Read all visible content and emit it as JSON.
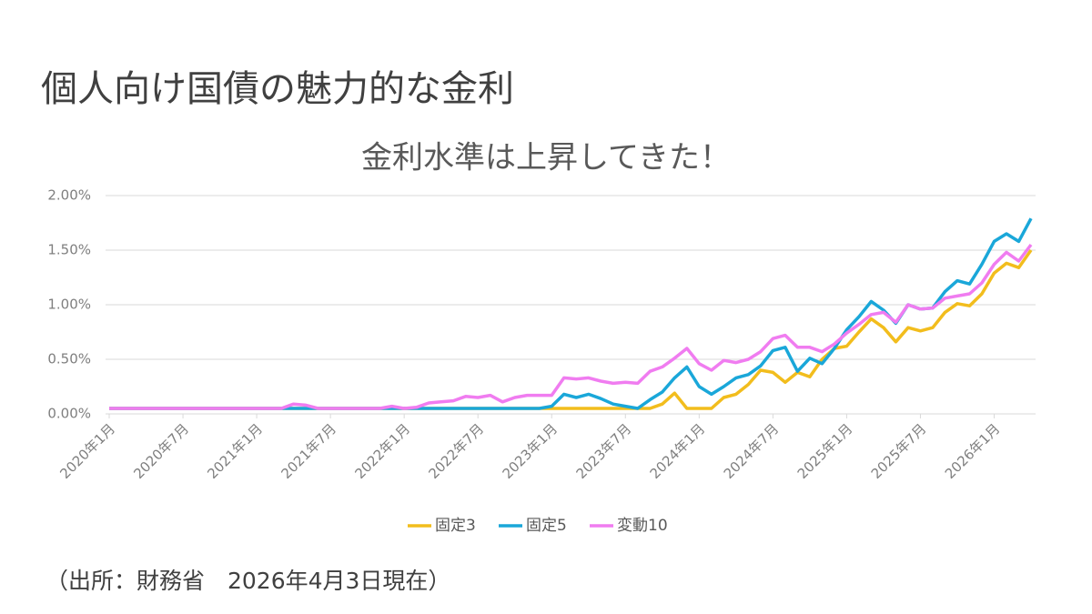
{
  "chart_data": {
    "type": "line",
    "title": "個人向け国債の魅力的な金利",
    "subtitle": "金利水準は上昇してきた！",
    "source": "（出所：財務省　2026年4月3日現在）",
    "categories": [
      "2020年1月",
      null,
      null,
      null,
      null,
      null,
      "2020年7月",
      null,
      null,
      null,
      null,
      null,
      "2021年1月",
      null,
      null,
      null,
      null,
      null,
      "2021年7月",
      null,
      null,
      null,
      null,
      null,
      "2022年1月",
      null,
      null,
      null,
      null,
      null,
      "2022年7月",
      null,
      null,
      null,
      null,
      null,
      "2023年1月",
      null,
      null,
      null,
      null,
      null,
      "2023年7月",
      null,
      null,
      null,
      null,
      null,
      "2024年1月",
      null,
      null,
      null,
      null,
      null,
      "2024年7月",
      null,
      null,
      null,
      null,
      null,
      "2025年1月",
      null,
      null,
      null,
      null,
      null,
      "2025年7月",
      null,
      null,
      null,
      null,
      null,
      "2026年1月",
      null,
      null,
      null
    ],
    "series": [
      {
        "name": "固定3",
        "color": "#f2bd1d",
        "values": [
          0.05,
          0.05,
          0.05,
          0.05,
          0.05,
          0.05,
          0.05,
          0.05,
          0.05,
          0.05,
          0.05,
          0.05,
          0.05,
          0.05,
          0.05,
          0.05,
          0.05,
          0.05,
          0.05,
          0.05,
          0.05,
          0.05,
          0.05,
          0.05,
          0.05,
          0.05,
          0.05,
          0.05,
          0.05,
          0.05,
          0.05,
          0.05,
          0.05,
          0.05,
          0.05,
          0.05,
          0.05,
          0.05,
          0.05,
          0.05,
          0.05,
          0.05,
          0.05,
          0.05,
          0.05,
          0.09,
          0.19,
          0.05,
          0.05,
          0.05,
          0.15,
          0.18,
          0.27,
          0.4,
          0.38,
          0.29,
          0.38,
          0.34,
          0.5,
          0.6,
          0.62,
          0.75,
          0.87,
          0.79,
          0.66,
          0.79,
          0.76,
          0.79,
          0.93,
          1.01,
          0.99,
          1.1,
          1.29,
          1.38,
          1.34,
          1.5
        ]
      },
      {
        "name": "固定5",
        "color": "#1aa7d9",
        "values": [
          0.05,
          0.05,
          0.05,
          0.05,
          0.05,
          0.05,
          0.05,
          0.05,
          0.05,
          0.05,
          0.05,
          0.05,
          0.05,
          0.05,
          0.05,
          0.05,
          0.05,
          0.05,
          0.05,
          0.05,
          0.05,
          0.05,
          0.05,
          0.05,
          0.05,
          0.05,
          0.05,
          0.05,
          0.05,
          0.05,
          0.05,
          0.05,
          0.05,
          0.05,
          0.05,
          0.05,
          0.07,
          0.18,
          0.15,
          0.18,
          0.14,
          0.09,
          0.07,
          0.05,
          0.13,
          0.2,
          0.33,
          0.43,
          0.25,
          0.18,
          0.25,
          0.33,
          0.36,
          0.44,
          0.58,
          0.61,
          0.39,
          0.51,
          0.46,
          0.6,
          0.77,
          0.89,
          1.03,
          0.95,
          0.83,
          1.0,
          0.96,
          0.97,
          1.12,
          1.22,
          1.19,
          1.37,
          1.58,
          1.65,
          1.58,
          1.79
        ]
      },
      {
        "name": "変動10",
        "color": "#f07cf0",
        "values": [
          0.05,
          0.05,
          0.05,
          0.05,
          0.05,
          0.05,
          0.05,
          0.05,
          0.05,
          0.05,
          0.05,
          0.05,
          0.05,
          0.05,
          0.05,
          0.09,
          0.08,
          0.05,
          0.05,
          0.05,
          0.05,
          0.05,
          0.05,
          0.07,
          0.05,
          0.06,
          0.1,
          0.11,
          0.12,
          0.16,
          0.15,
          0.17,
          0.11,
          0.15,
          0.17,
          0.17,
          0.17,
          0.33,
          0.32,
          0.33,
          0.3,
          0.28,
          0.29,
          0.28,
          0.39,
          0.43,
          0.51,
          0.6,
          0.46,
          0.4,
          0.49,
          0.47,
          0.5,
          0.57,
          0.69,
          0.72,
          0.61,
          0.61,
          0.57,
          0.64,
          0.74,
          0.82,
          0.91,
          0.93,
          0.84,
          1.0,
          0.96,
          0.97,
          1.06,
          1.08,
          1.1,
          1.2,
          1.37,
          1.48,
          1.4,
          1.55
        ]
      }
    ],
    "ylim": [
      0,
      2
    ],
    "yticks": [
      {
        "value": 0,
        "label": "0.00%"
      },
      {
        "value": 0.5,
        "label": "0.50%"
      },
      {
        "value": 1,
        "label": "1.00%"
      },
      {
        "value": 1.5,
        "label": "1.50%"
      },
      {
        "value": 2,
        "label": "2.00%"
      }
    ],
    "grid": true,
    "legend": "bottom"
  }
}
